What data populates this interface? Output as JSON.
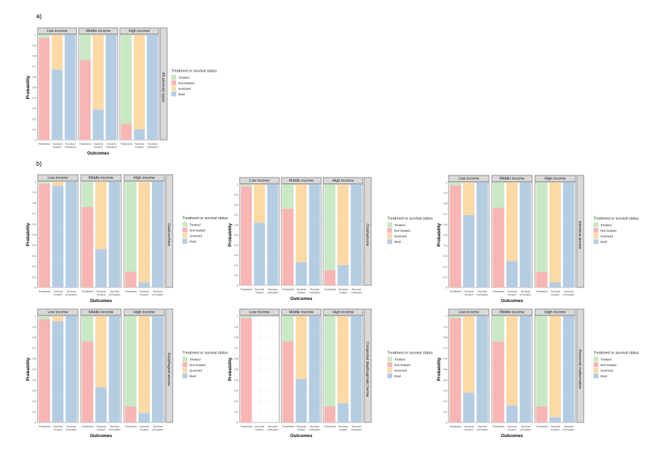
{
  "labels": {
    "panel_a": "a)",
    "panel_b": "b)",
    "ylabel": "Probability",
    "xlabel": "Outcomes",
    "legend_title": "Treatment or survival status",
    "income_groups": [
      "Low income",
      "Middle income",
      "High income"
    ],
    "x_categories": [
      [
        "Treatment"
      ],
      [
        "Survival",
        "treated"
      ],
      [
        "Survival",
        "untreated"
      ]
    ],
    "y_ticks": [
      "0",
      "0.1",
      "0.2",
      "0.3",
      "0.4",
      "0.5",
      "0.6",
      "0.7",
      "0.8",
      "0.9",
      "1"
    ]
  },
  "colors": {
    "Treated": "#c9e8c4",
    "Not treated": "#f8b5b3",
    "Survived": "#fdd9a6",
    "Died": "#b5cde3",
    "strip": "#d9d9d9",
    "grid": "#ebebeb"
  },
  "chart_data": [
    {
      "type": "bar",
      "stacked": true,
      "condition": "All anomaly types",
      "legend": [
        "Treated",
        "Not treated",
        "Survived",
        "Died"
      ],
      "groups": [
        {
          "income": "Low income",
          "treatment": [
            0.03,
            0.97
          ],
          "survival_treated": [
            0.33,
            0.67
          ],
          "survival_untreated": [
            0.0,
            1.0
          ]
        },
        {
          "income": "Middle income",
          "treatment": [
            0.24,
            0.76
          ],
          "survival_treated": [
            0.71,
            0.29
          ],
          "survival_untreated": [
            0.0,
            1.0
          ]
        },
        {
          "income": "High income",
          "treatment": [
            0.85,
            0.15
          ],
          "survival_treated": [
            0.9,
            0.1
          ],
          "survival_untreated": [
            0.0,
            1.0
          ]
        }
      ]
    },
    {
      "type": "bar",
      "stacked": true,
      "condition": "Gastroschisis",
      "legend": [
        "Treated",
        "Not treated",
        "Survived",
        "Died"
      ],
      "groups": [
        {
          "income": "Low income",
          "treatment": [
            0.02,
            0.98
          ],
          "survival_treated": [
            0.04,
            0.96
          ],
          "survival_untreated": [
            0.0,
            1.0
          ]
        },
        {
          "income": "Middle income",
          "treatment": [
            0.24,
            0.76
          ],
          "survival_treated": [
            0.64,
            0.36
          ],
          "survival_untreated": [
            0.0,
            1.0
          ]
        },
        {
          "income": "High income",
          "treatment": [
            0.85,
            0.15
          ],
          "survival_treated": [
            0.95,
            0.05
          ],
          "survival_untreated": [
            0.0,
            1.0
          ]
        }
      ]
    },
    {
      "type": "bar",
      "stacked": true,
      "condition": "Omphalocele",
      "legend": [
        "Treated",
        "Not treated",
        "Survived",
        "Died"
      ],
      "groups": [
        {
          "income": "Low income",
          "treatment": [
            0.02,
            0.98
          ],
          "survival_treated": [
            0.38,
            0.62
          ],
          "survival_untreated": [
            0.0,
            1.0
          ]
        },
        {
          "income": "Middle income",
          "treatment": [
            0.24,
            0.76
          ],
          "survival_treated": [
            0.77,
            0.23
          ],
          "survival_untreated": [
            0.0,
            1.0
          ]
        },
        {
          "income": "High income",
          "treatment": [
            0.85,
            0.15
          ],
          "survival_treated": [
            0.8,
            0.2
          ],
          "survival_untreated": [
            0.0,
            1.0
          ]
        }
      ]
    },
    {
      "type": "bar",
      "stacked": true,
      "condition": "Intestinal atresia",
      "legend": [
        "Treated",
        "Not treated",
        "Survived",
        "Died"
      ],
      "groups": [
        {
          "income": "Low income",
          "treatment": [
            0.03,
            0.97
          ],
          "survival_treated": [
            0.31,
            0.69
          ],
          "survival_untreated": [
            0.0,
            1.0
          ]
        },
        {
          "income": "Middle income",
          "treatment": [
            0.24,
            0.76
          ],
          "survival_treated": [
            0.75,
            0.25
          ],
          "survival_untreated": [
            0.0,
            1.0
          ]
        },
        {
          "income": "High income",
          "treatment": [
            0.85,
            0.15
          ],
          "survival_treated": [
            0.95,
            0.05
          ],
          "survival_untreated": [
            0.0,
            1.0
          ]
        }
      ]
    },
    {
      "type": "bar",
      "stacked": true,
      "condition": "Esophageal atresia",
      "legend": [
        "Treated",
        "Not treated",
        "Survived",
        "Died"
      ],
      "groups": [
        {
          "income": "Low income",
          "treatment": [
            0.03,
            0.97
          ],
          "survival_treated": [
            0.05,
            0.95
          ],
          "survival_untreated": [
            0.0,
            1.0
          ]
        },
        {
          "income": "Middle income",
          "treatment": [
            0.24,
            0.76
          ],
          "survival_treated": [
            0.67,
            0.33
          ],
          "survival_untreated": [
            0.0,
            1.0
          ]
        },
        {
          "income": "High income",
          "treatment": [
            0.85,
            0.15
          ],
          "survival_treated": [
            0.91,
            0.09
          ],
          "survival_untreated": [
            0.0,
            1.0
          ]
        }
      ]
    },
    {
      "type": "bar",
      "stacked": true,
      "condition": "Congenital diaphragmatic hernia",
      "legend": [
        "Treated",
        "Not treated",
        "Survived",
        "Died"
      ],
      "groups": [
        {
          "income": "Low income",
          "treatment": [
            0.02,
            0.98
          ],
          "survival_treated": [
            0.0,
            0.0
          ],
          "survival_untreated": [
            0.0,
            0.0
          ]
        },
        {
          "income": "Middle income",
          "treatment": [
            0.24,
            0.76
          ],
          "survival_treated": [
            0.59,
            0.41
          ],
          "survival_untreated": [
            0.0,
            1.0
          ]
        },
        {
          "income": "High income",
          "treatment": [
            0.85,
            0.15
          ],
          "survival_treated": [
            0.82,
            0.18
          ],
          "survival_untreated": [
            0.0,
            1.0
          ]
        }
      ]
    },
    {
      "type": "bar",
      "stacked": true,
      "condition": "Anorectal malformation",
      "legend": [
        "Treated",
        "Not treated",
        "Survived",
        "Died"
      ],
      "groups": [
        {
          "income": "Low income",
          "treatment": [
            0.02,
            0.98
          ],
          "survival_treated": [
            0.72,
            0.28
          ],
          "survival_untreated": [
            0.0,
            1.0
          ]
        },
        {
          "income": "Middle income",
          "treatment": [
            0.24,
            0.76
          ],
          "survival_treated": [
            0.84,
            0.16
          ],
          "survival_untreated": [
            0.0,
            1.0
          ]
        },
        {
          "income": "High income",
          "treatment": [
            0.85,
            0.15
          ],
          "survival_treated": [
            0.95,
            0.05
          ],
          "survival_untreated": [
            0.0,
            1.0
          ]
        }
      ]
    }
  ]
}
